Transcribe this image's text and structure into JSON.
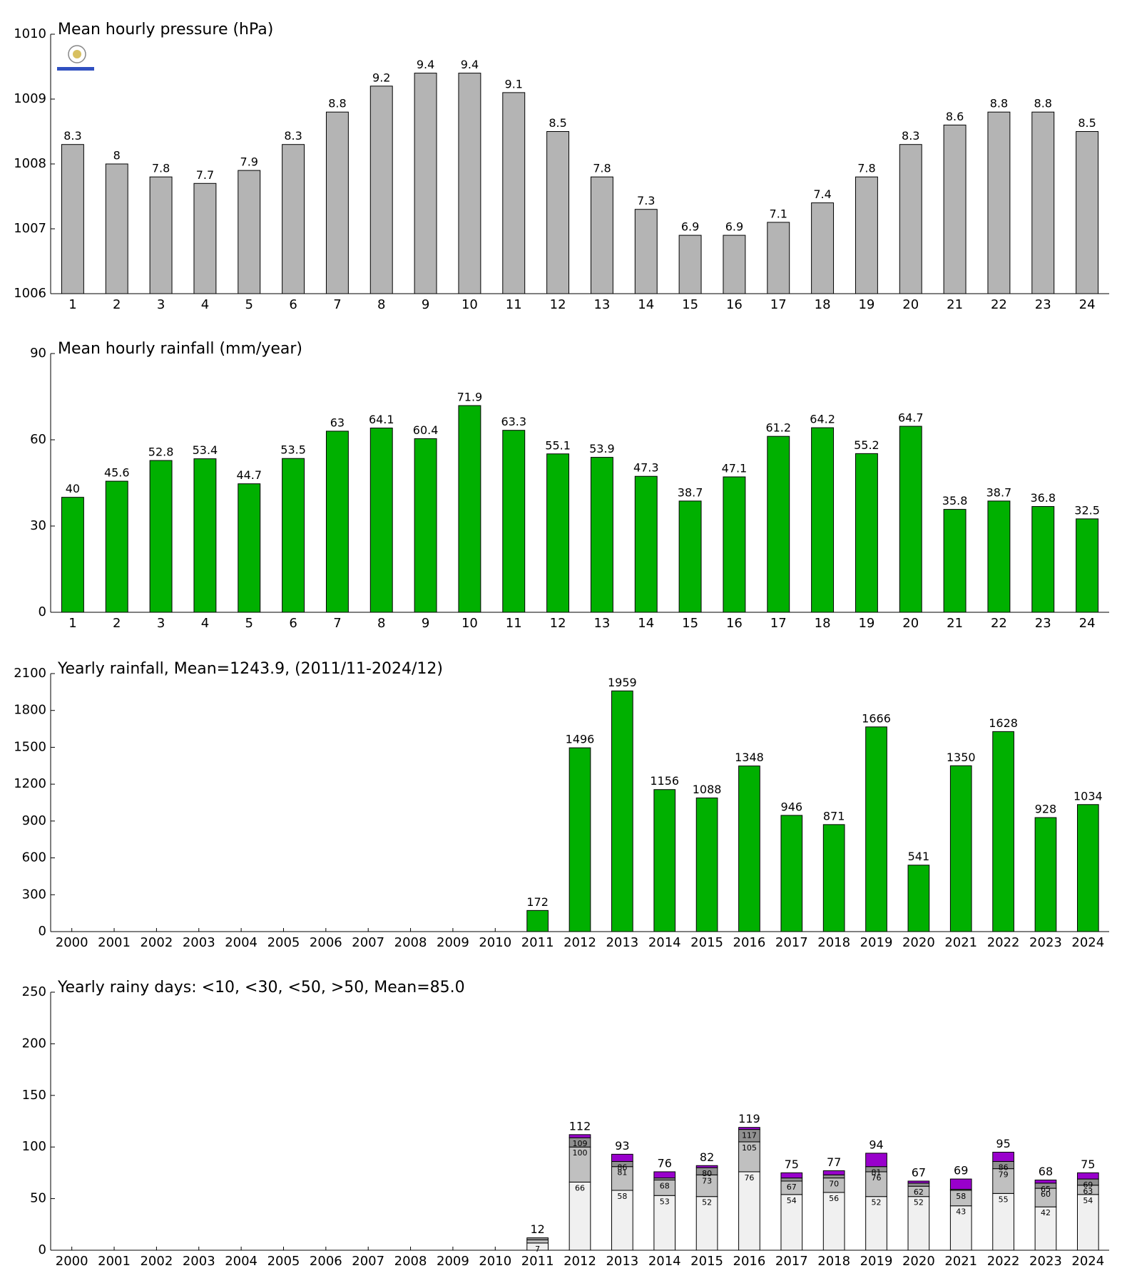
{
  "chart_data": [
    {
      "type": "bar",
      "title": "Mean hourly pressure (hPa)",
      "categories": [
        "1",
        "2",
        "3",
        "4",
        "5",
        "6",
        "7",
        "8",
        "9",
        "10",
        "11",
        "12",
        "13",
        "14",
        "15",
        "16",
        "17",
        "18",
        "19",
        "20",
        "21",
        "22",
        "23",
        "24"
      ],
      "values": [
        1008.3,
        1008,
        1007.8,
        1007.7,
        1007.9,
        1008.3,
        1008.8,
        1009.2,
        1009.4,
        1009.4,
        1009.1,
        1008.5,
        1007.8,
        1007.3,
        1006.9,
        1006.9,
        1007.1,
        1007.4,
        1007.8,
        1008.3,
        1008.6,
        1008.8,
        1008.8,
        1008.5
      ],
      "value_labels": [
        "8.3",
        "8",
        "7.8",
        "7.7",
        "7.9",
        "8.3",
        "8.8",
        "9.2",
        "9.4",
        "9.4",
        "9.1",
        "8.5",
        "7.8",
        "7.3",
        "6.9",
        "6.9",
        "7.1",
        "7.4",
        "7.8",
        "8.3",
        "8.6",
        "8.8",
        "8.8",
        "8.5"
      ],
      "color": "#b4b4b4",
      "ylim": [
        1006,
        1010
      ],
      "yticks": [
        1006,
        1007,
        1008,
        1009,
        1010
      ]
    },
    {
      "type": "bar",
      "title": "Mean hourly rainfall (mm/year)",
      "categories": [
        "1",
        "2",
        "3",
        "4",
        "5",
        "6",
        "7",
        "8",
        "9",
        "10",
        "11",
        "12",
        "13",
        "14",
        "15",
        "16",
        "17",
        "18",
        "19",
        "20",
        "21",
        "22",
        "23",
        "24"
      ],
      "values": [
        40,
        45.6,
        52.8,
        53.4,
        44.7,
        53.5,
        63,
        64.1,
        60.4,
        71.9,
        63.3,
        55.1,
        53.9,
        47.3,
        38.7,
        47.1,
        61.2,
        64.2,
        55.2,
        64.7,
        35.8,
        38.7,
        36.8,
        32.5
      ],
      "color": "#00b000",
      "ylim": [
        0,
        90
      ],
      "yticks": [
        0,
        30,
        60,
        90
      ]
    },
    {
      "type": "bar",
      "title": "Yearly rainfall, Mean=1243.9, (2011/11-2024/12)",
      "categories": [
        "2000",
        "2001",
        "2002",
        "2003",
        "2004",
        "2005",
        "2006",
        "2007",
        "2008",
        "2009",
        "2010",
        "2011",
        "2012",
        "2013",
        "2014",
        "2015",
        "2016",
        "2017",
        "2018",
        "2019",
        "2020",
        "2021",
        "2022",
        "2023",
        "2024"
      ],
      "values": [
        null,
        null,
        null,
        null,
        null,
        null,
        null,
        null,
        null,
        null,
        null,
        172,
        1496,
        1959,
        1156,
        1088,
        1348,
        946,
        871,
        1666,
        541,
        1350,
        1628,
        928,
        1034
      ],
      "color": "#00b000",
      "ylim": [
        0,
        2100
      ],
      "yticks": [
        0,
        300,
        600,
        900,
        1200,
        1500,
        1800,
        2100
      ]
    },
    {
      "type": "stacked_bar",
      "title": "Yearly rainy days: <10, <30, <50, >50, Mean=85.0",
      "categories": [
        "2000",
        "2001",
        "2002",
        "2003",
        "2004",
        "2005",
        "2006",
        "2007",
        "2008",
        "2009",
        "2010",
        "2011",
        "2012",
        "2013",
        "2014",
        "2015",
        "2016",
        "2017",
        "2018",
        "2019",
        "2020",
        "2021",
        "2022",
        "2023",
        "2024"
      ],
      "series": [
        {
          "color": "#f0f0f0",
          "values": [
            null,
            null,
            null,
            null,
            null,
            null,
            null,
            null,
            null,
            null,
            null,
            7,
            66,
            58,
            53,
            52,
            76,
            54,
            56,
            52,
            52,
            43,
            55,
            42,
            54
          ],
          "labels": [
            null,
            null,
            null,
            null,
            null,
            null,
            null,
            null,
            null,
            null,
            null,
            7,
            66,
            58,
            53,
            52,
            76,
            54,
            56,
            52,
            52,
            43,
            55,
            42,
            54
          ]
        },
        {
          "color": "#c0c0c0",
          "values": [
            null,
            null,
            null,
            null,
            null,
            null,
            null,
            null,
            null,
            null,
            null,
            3,
            34,
            23,
            15,
            21,
            29,
            13,
            14,
            24,
            10,
            15,
            24,
            18,
            9
          ],
          "labels": [
            null,
            null,
            null,
            null,
            null,
            null,
            null,
            null,
            null,
            null,
            null,
            null,
            100,
            81,
            68,
            73,
            105,
            67,
            70,
            76,
            62,
            58,
            79,
            60,
            63
          ]
        },
        {
          "color": "#909090",
          "values": [
            null,
            null,
            null,
            null,
            null,
            null,
            null,
            null,
            null,
            null,
            null,
            2,
            9,
            5,
            2,
            7,
            12,
            3,
            3,
            5,
            3,
            1,
            7,
            5,
            6
          ],
          "labels": [
            null,
            null,
            null,
            null,
            null,
            null,
            null,
            null,
            null,
            null,
            null,
            null,
            109,
            86,
            null,
            80,
            117,
            null,
            null,
            81,
            null,
            null,
            86,
            65,
            69
          ]
        },
        {
          "color": "#9900cc",
          "values": [
            null,
            null,
            null,
            null,
            null,
            null,
            null,
            null,
            null,
            null,
            null,
            0,
            3,
            7,
            6,
            2,
            2,
            5,
            4,
            13,
            2,
            10,
            9,
            3,
            6
          ],
          "labels": [
            null,
            null,
            null,
            null,
            null,
            null,
            null,
            null,
            null,
            null,
            null,
            12,
            112,
            93,
            76,
            82,
            119,
            75,
            77,
            94,
            67,
            69,
            95,
            68,
            75
          ]
        }
      ],
      "ylim": [
        0,
        250
      ],
      "yticks": [
        0,
        50,
        100,
        150,
        200,
        250
      ]
    }
  ]
}
